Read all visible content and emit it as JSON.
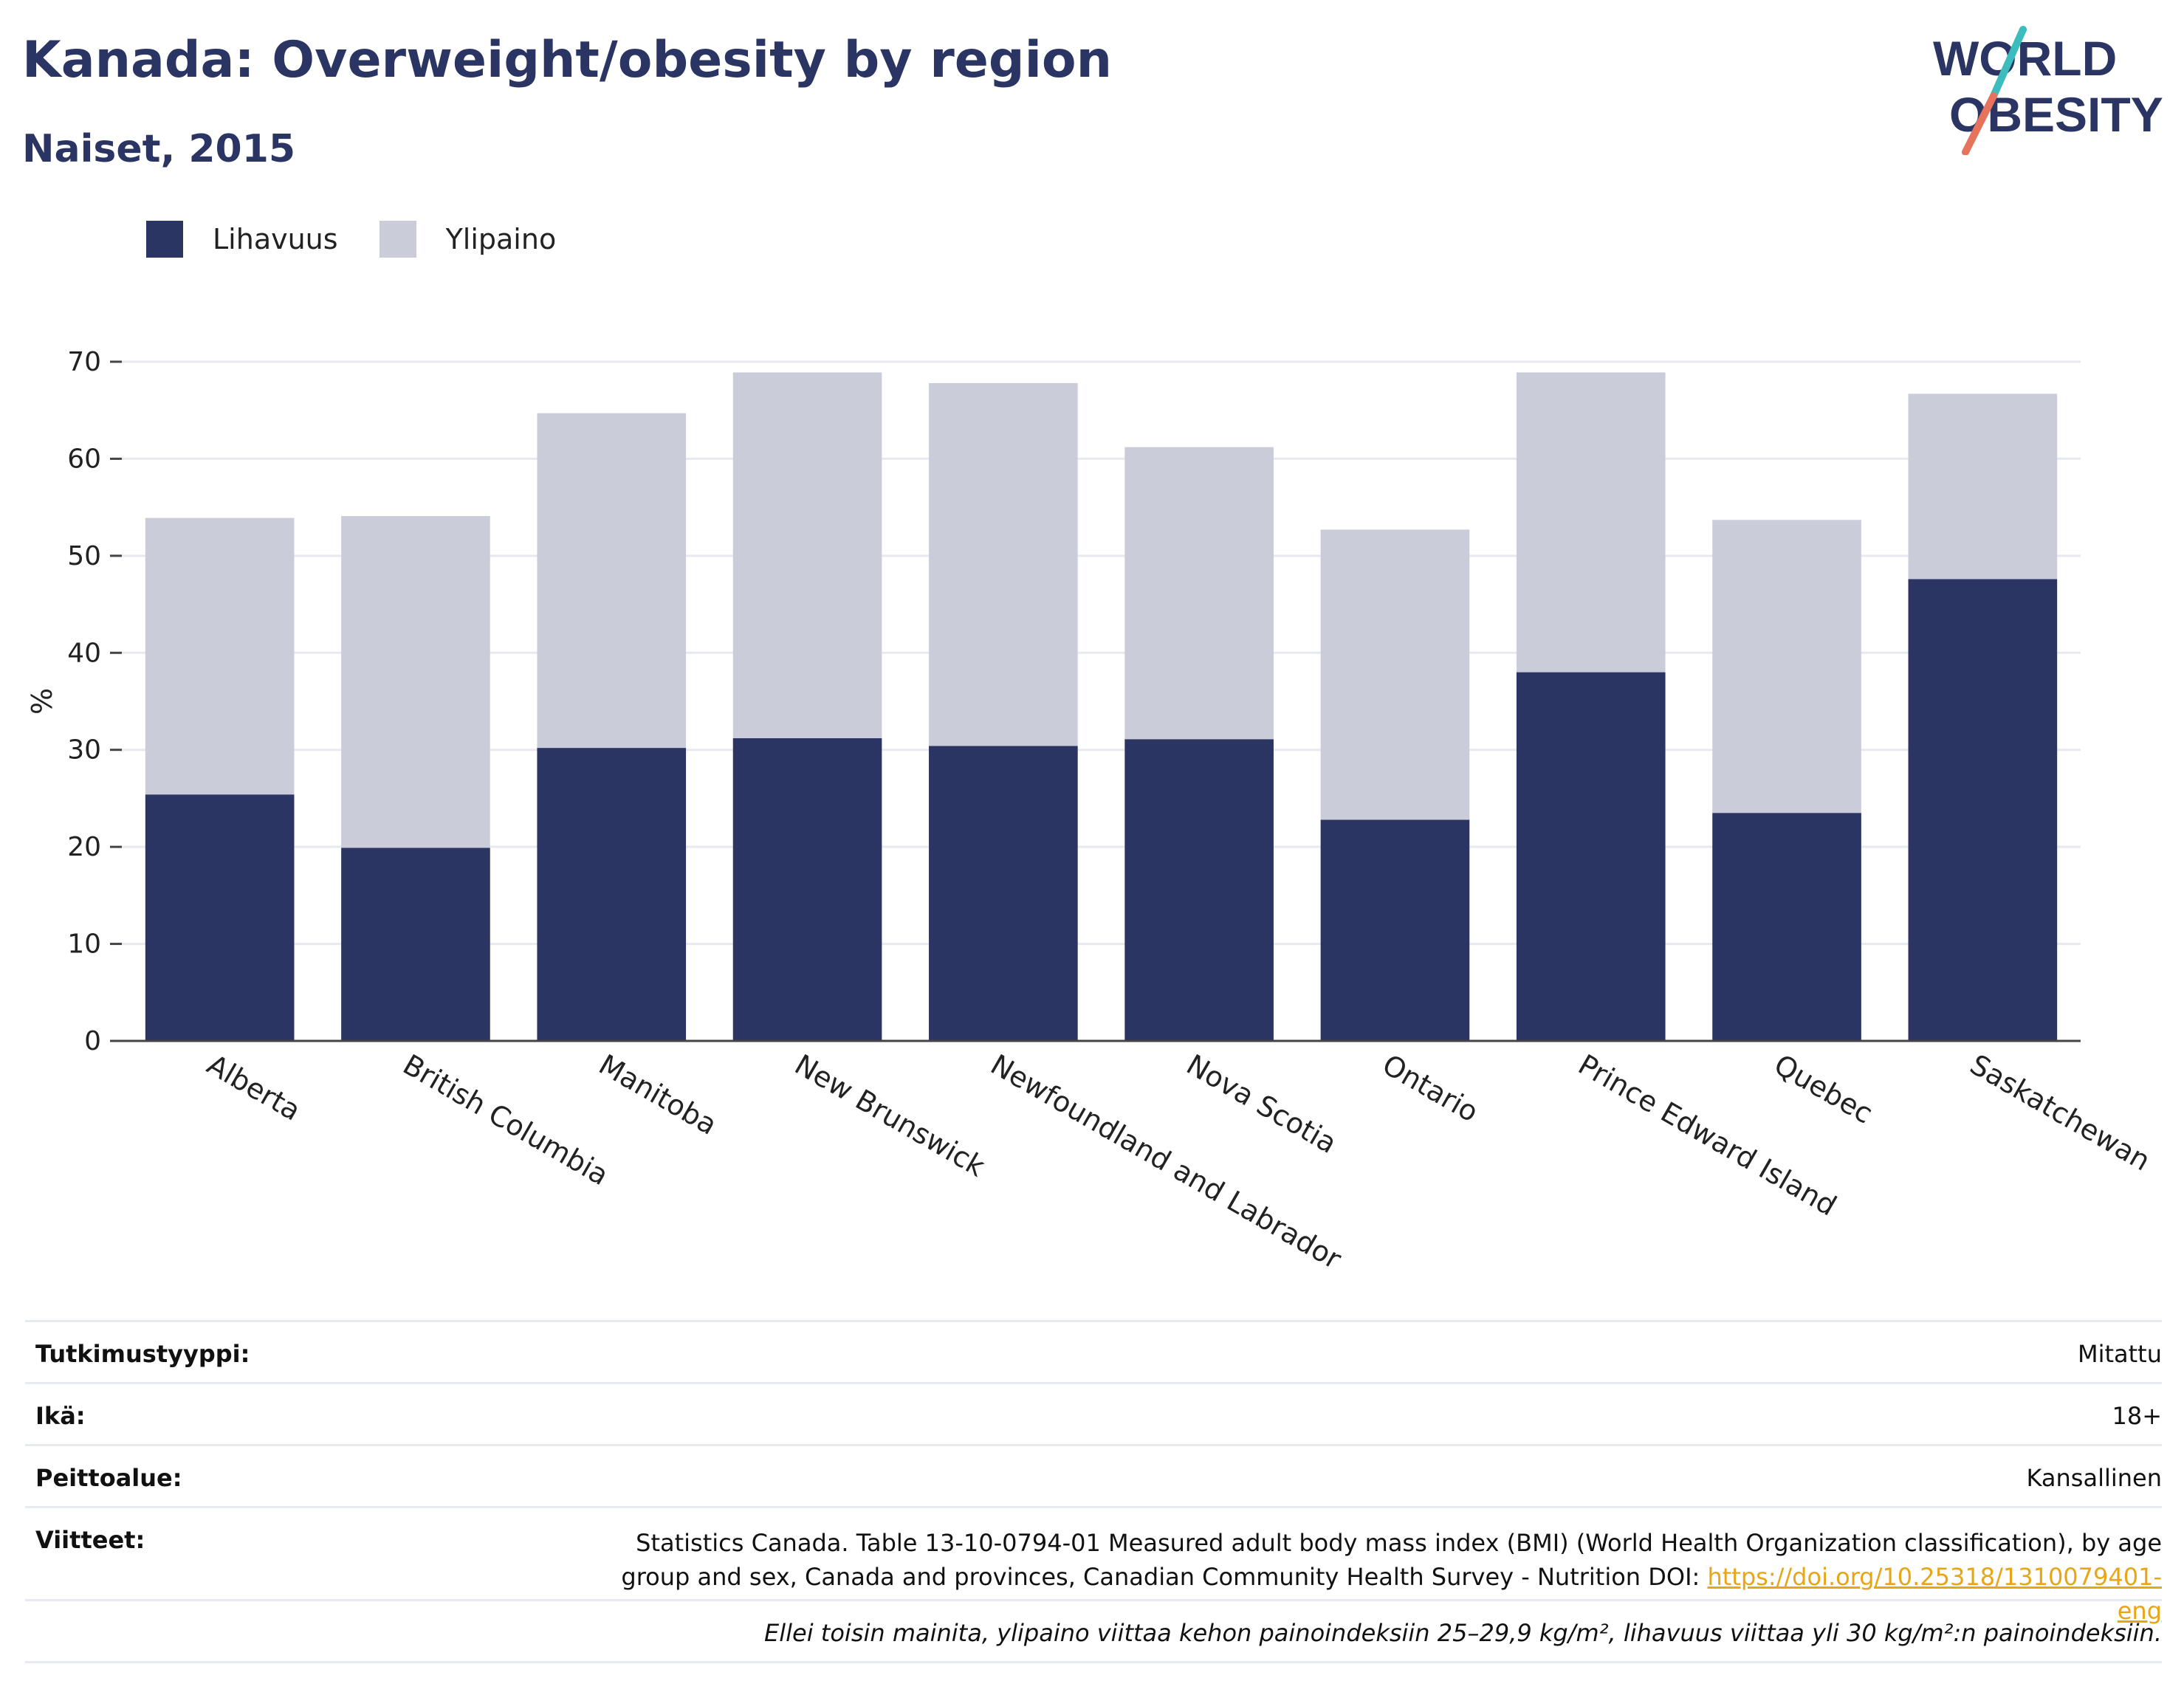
{
  "header": {
    "title": "Kanada: Overweight/obesity by region",
    "subtitle": "Naiset, 2015"
  },
  "logo": {
    "line1": "WORLD",
    "line2": "OBESITY"
  },
  "colors": {
    "obesity": "#2a3563",
    "overweight": "#cbccd9",
    "title": "#2a3563",
    "link": "#e8a617",
    "logo_teal": "#3cbcbd",
    "logo_coral": "#e8735d"
  },
  "legend": [
    {
      "label": "Lihavuus",
      "color": "#2a3563"
    },
    {
      "label": "Ylipaino",
      "color": "#cbccd9"
    }
  ],
  "chart_data": {
    "type": "bar",
    "stacked": true,
    "categories": [
      "Alberta",
      "British Columbia",
      "Manitoba",
      "New Brunswick",
      "Newfoundland and Labrador",
      "Nova Scotia",
      "Ontario",
      "Prince Edward Island",
      "Quebec",
      "Saskatchewan"
    ],
    "series": [
      {
        "name": "Lihavuus",
        "color": "#2a3563",
        "values": [
          25.4,
          19.9,
          30.2,
          31.2,
          30.4,
          31.1,
          22.8,
          38.0,
          23.5,
          47.6
        ]
      },
      {
        "name": "Ylipaino",
        "color": "#cbccd9",
        "values": [
          28.5,
          34.2,
          34.5,
          37.7,
          37.4,
          30.1,
          29.9,
          30.9,
          30.2,
          19.1
        ]
      }
    ],
    "ylabel": "%",
    "ylim": [
      0,
      70
    ],
    "yticks": [
      0,
      10,
      20,
      30,
      40,
      50,
      60,
      70
    ],
    "grid": true,
    "legend_position": "top-left"
  },
  "meta": {
    "rows": [
      {
        "key": "Tutkimustyyppi:",
        "value": "Mitattu"
      },
      {
        "key": "Ikä:",
        "value": "18+"
      },
      {
        "key": "Peittoalue:",
        "value": "Kansallinen"
      }
    ],
    "references": {
      "key": "Viitteet:",
      "text": "Statistics Canada. Table 13-10-0794-01 Measured adult body mass index (BMI) (World Health Organization classification), by age group and sex, Canada and provinces, Canadian Community Health Survey - Nutrition DOI: ",
      "link": "https://doi.org/10.25318/1310079401-eng"
    },
    "note": "Ellei toisin mainita, ylipaino viittaa kehon painoindeksiin 25–29,9 kg/m², lihavuus viittaa yli 30 kg/m²:n painoindeksiin."
  }
}
